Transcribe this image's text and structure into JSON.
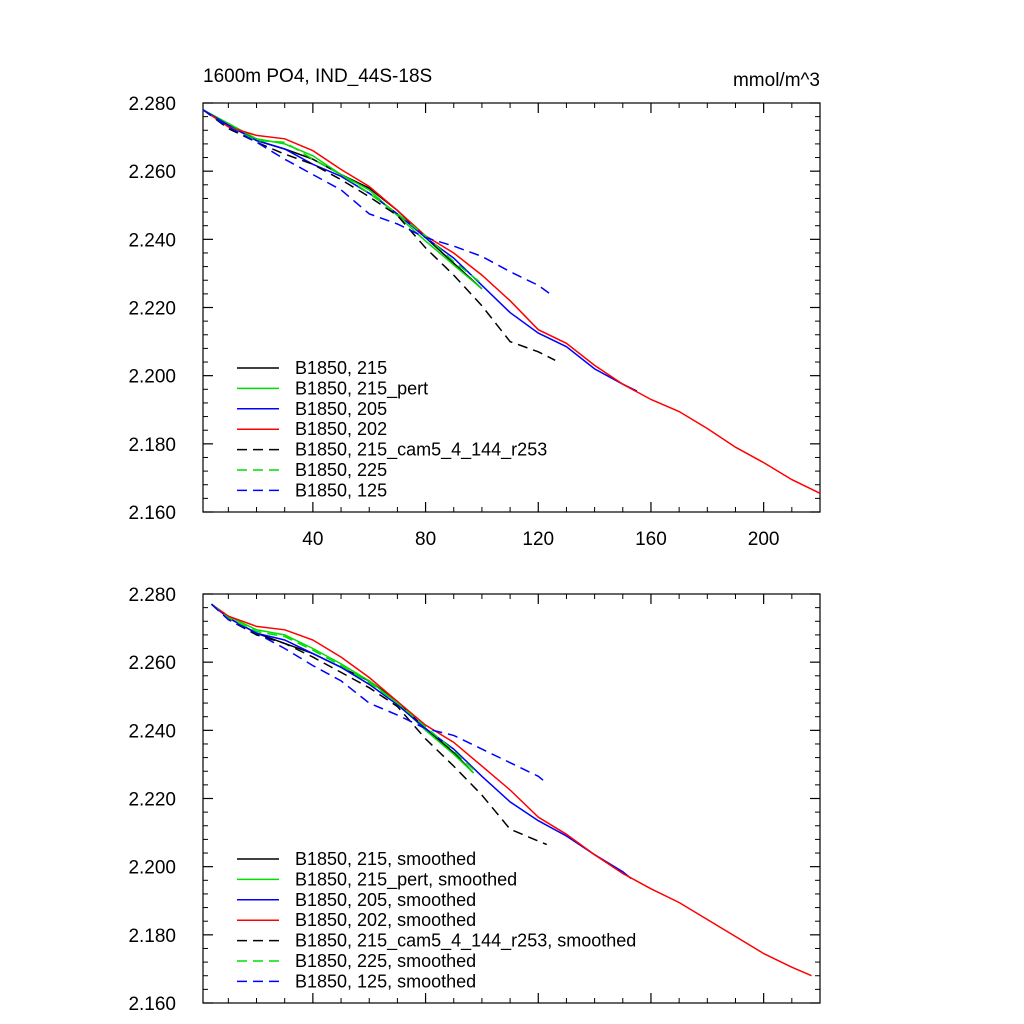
{
  "header": {
    "title": "1600m PO4, IND_44S-18S",
    "units": "mmol/m^3"
  },
  "chart_data": [
    {
      "type": "line",
      "title": "1600m PO4, IND_44S-18S",
      "xlabel": "",
      "ylabel": "",
      "units": "mmol/m^3",
      "xlim": [
        1,
        220
      ],
      "ylim": [
        2.16,
        2.28
      ],
      "xticks": [
        40,
        80,
        120,
        160,
        200
      ],
      "yticks": [
        2.16,
        2.18,
        2.2,
        2.22,
        2.24,
        2.26,
        2.28
      ],
      "xtick_labels": [
        "40",
        "80",
        "120",
        "160",
        "200"
      ],
      "ytick_labels": [
        "2.160",
        "2.180",
        "2.200",
        "2.220",
        "2.240",
        "2.260",
        "2.280"
      ],
      "legend_position": "lower-left",
      "series": [
        {
          "name": "B1850, 215",
          "color": "#000000",
          "dash": "solid",
          "x": [
            1,
            10,
            20,
            30,
            40,
            50,
            60,
            70,
            80,
            90,
            100
          ],
          "y": [
            2.278,
            2.2735,
            2.269,
            2.2665,
            2.2635,
            2.259,
            2.255,
            2.2485,
            2.2405,
            2.233,
            2.2255
          ]
        },
        {
          "name": "B1850, 215_pert",
          "color": "#00dd00",
          "dash": "solid",
          "x": [
            1,
            10,
            20,
            30,
            40,
            50,
            60,
            70,
            80,
            90,
            100
          ],
          "y": [
            2.278,
            2.274,
            2.2695,
            2.268,
            2.2645,
            2.259,
            2.2545,
            2.247,
            2.2395,
            2.2325,
            2.2255
          ]
        },
        {
          "name": "B1850, 205",
          "color": "#0000ff",
          "dash": "solid",
          "x": [
            1,
            10,
            20,
            30,
            40,
            50,
            60,
            70,
            80,
            90,
            100,
            110,
            120,
            130,
            140,
            150,
            155
          ],
          "y": [
            2.278,
            2.2735,
            2.269,
            2.2665,
            2.262,
            2.2585,
            2.2535,
            2.2475,
            2.2405,
            2.2345,
            2.2265,
            2.2185,
            2.2125,
            2.2085,
            2.202,
            2.1975,
            2.1955
          ]
        },
        {
          "name": "B1850, 202",
          "color": "#ff0000",
          "dash": "solid",
          "x": [
            1,
            10,
            20,
            30,
            40,
            50,
            60,
            70,
            80,
            90,
            100,
            110,
            120,
            130,
            140,
            150,
            160,
            170,
            180,
            190,
            200,
            210,
            220
          ],
          "y": [
            2.278,
            2.273,
            2.2705,
            2.2695,
            2.266,
            2.2605,
            2.2555,
            2.2485,
            2.241,
            2.236,
            2.2295,
            2.222,
            2.2135,
            2.2095,
            2.203,
            2.1975,
            2.193,
            2.1895,
            2.1845,
            2.179,
            2.1745,
            2.1695,
            2.1655
          ]
        },
        {
          "name": "B1850, 215_cam5_4_144_r253",
          "color": "#000000",
          "dash": "dashed",
          "x": [
            1,
            10,
            20,
            30,
            40,
            50,
            60,
            70,
            80,
            90,
            100,
            110,
            120,
            126
          ],
          "y": [
            2.278,
            2.2725,
            2.2685,
            2.265,
            2.262,
            2.2575,
            2.2525,
            2.247,
            2.2375,
            2.2295,
            2.2205,
            2.21,
            2.207,
            2.2045
          ]
        },
        {
          "name": "B1850, 225",
          "color": "#00dd00",
          "dash": "dashed",
          "x": [
            1,
            10,
            20,
            30,
            40,
            50,
            60,
            70,
            80,
            90,
            100
          ],
          "y": [
            2.278,
            2.273,
            2.269,
            2.2685,
            2.2635,
            2.259,
            2.2535,
            2.2475,
            2.241,
            2.2335,
            2.227
          ]
        },
        {
          "name": "B1850, 125",
          "color": "#0000ff",
          "dash": "dashed",
          "x": [
            1,
            10,
            20,
            30,
            40,
            50,
            60,
            70,
            80,
            90,
            100,
            110,
            120,
            125
          ],
          "y": [
            2.278,
            2.273,
            2.2685,
            2.2635,
            2.259,
            2.2545,
            2.2475,
            2.2445,
            2.2405,
            2.238,
            2.235,
            2.2305,
            2.2265,
            2.2235
          ]
        }
      ]
    },
    {
      "type": "line",
      "title": "",
      "xlabel": "",
      "ylabel": "",
      "xlim": [
        1,
        220
      ],
      "ylim": [
        2.16,
        2.28
      ],
      "xticks": [
        40,
        80,
        120,
        160,
        200
      ],
      "yticks": [
        2.16,
        2.18,
        2.2,
        2.22,
        2.24,
        2.26,
        2.28
      ],
      "xtick_labels": [],
      "ytick_labels": [
        "2.160",
        "2.180",
        "2.200",
        "2.220",
        "2.240",
        "2.260",
        "2.280"
      ],
      "legend_position": "lower-left",
      "series": [
        {
          "name": "B1850, 215, smoothed",
          "color": "#000000",
          "dash": "solid",
          "x": [
            4,
            10,
            20,
            30,
            40,
            50,
            60,
            70,
            80,
            90,
            97
          ],
          "y": [
            2.277,
            2.273,
            2.2685,
            2.2655,
            2.2625,
            2.2585,
            2.2545,
            2.2485,
            2.2405,
            2.2335,
            2.2275
          ]
        },
        {
          "name": "B1850, 215_pert, smoothed",
          "color": "#00dd00",
          "dash": "solid",
          "x": [
            4,
            10,
            20,
            30,
            40,
            50,
            60,
            70,
            80,
            90,
            97
          ],
          "y": [
            2.277,
            2.2735,
            2.2695,
            2.268,
            2.264,
            2.2595,
            2.2545,
            2.248,
            2.24,
            2.233,
            2.2275
          ]
        },
        {
          "name": "B1850, 205, smoothed",
          "color": "#0000ff",
          "dash": "solid",
          "x": [
            4,
            10,
            20,
            30,
            40,
            50,
            60,
            70,
            80,
            90,
            100,
            110,
            120,
            130,
            140,
            150,
            153
          ],
          "y": [
            2.277,
            2.273,
            2.2685,
            2.2665,
            2.2625,
            2.2585,
            2.2535,
            2.2475,
            2.2405,
            2.2345,
            2.2265,
            2.219,
            2.2135,
            2.209,
            2.2035,
            2.1985,
            2.1965
          ]
        },
        {
          "name": "B1850, 202, smoothed",
          "color": "#ff0000",
          "dash": "solid",
          "x": [
            4,
            10,
            20,
            30,
            40,
            50,
            60,
            70,
            80,
            90,
            100,
            110,
            120,
            130,
            140,
            150,
            160,
            170,
            180,
            190,
            200,
            210,
            217
          ],
          "y": [
            2.277,
            2.2735,
            2.2705,
            2.2695,
            2.2665,
            2.2615,
            2.2555,
            2.2485,
            2.2415,
            2.2365,
            2.2295,
            2.2225,
            2.2145,
            2.2095,
            2.2035,
            2.198,
            2.1935,
            2.1895,
            2.1845,
            2.1795,
            2.1745,
            2.1705,
            2.168
          ]
        },
        {
          "name": "B1850, 215_cam5_4_144_r253, smoothed",
          "color": "#000000",
          "dash": "dashed",
          "x": [
            4,
            10,
            20,
            30,
            40,
            50,
            60,
            70,
            80,
            90,
            100,
            110,
            120,
            123
          ],
          "y": [
            2.277,
            2.2725,
            2.268,
            2.2655,
            2.2615,
            2.257,
            2.2525,
            2.247,
            2.2375,
            2.2295,
            2.221,
            2.211,
            2.2075,
            2.2065
          ]
        },
        {
          "name": "B1850, 225, smoothed",
          "color": "#00dd00",
          "dash": "dashed",
          "x": [
            4,
            10,
            20,
            30,
            40,
            50,
            60,
            70,
            80,
            90,
            97
          ],
          "y": [
            2.277,
            2.273,
            2.269,
            2.2675,
            2.2635,
            2.259,
            2.254,
            2.248,
            2.241,
            2.234,
            2.2285
          ]
        },
        {
          "name": "B1850, 125, smoothed",
          "color": "#0000ff",
          "dash": "dashed",
          "x": [
            4,
            10,
            20,
            30,
            40,
            50,
            60,
            70,
            80,
            90,
            100,
            110,
            120,
            123
          ],
          "y": [
            2.277,
            2.2725,
            2.2685,
            2.264,
            2.259,
            2.2545,
            2.248,
            2.2445,
            2.2405,
            2.2385,
            2.2345,
            2.2305,
            2.2265,
            2.2245
          ]
        }
      ]
    }
  ]
}
